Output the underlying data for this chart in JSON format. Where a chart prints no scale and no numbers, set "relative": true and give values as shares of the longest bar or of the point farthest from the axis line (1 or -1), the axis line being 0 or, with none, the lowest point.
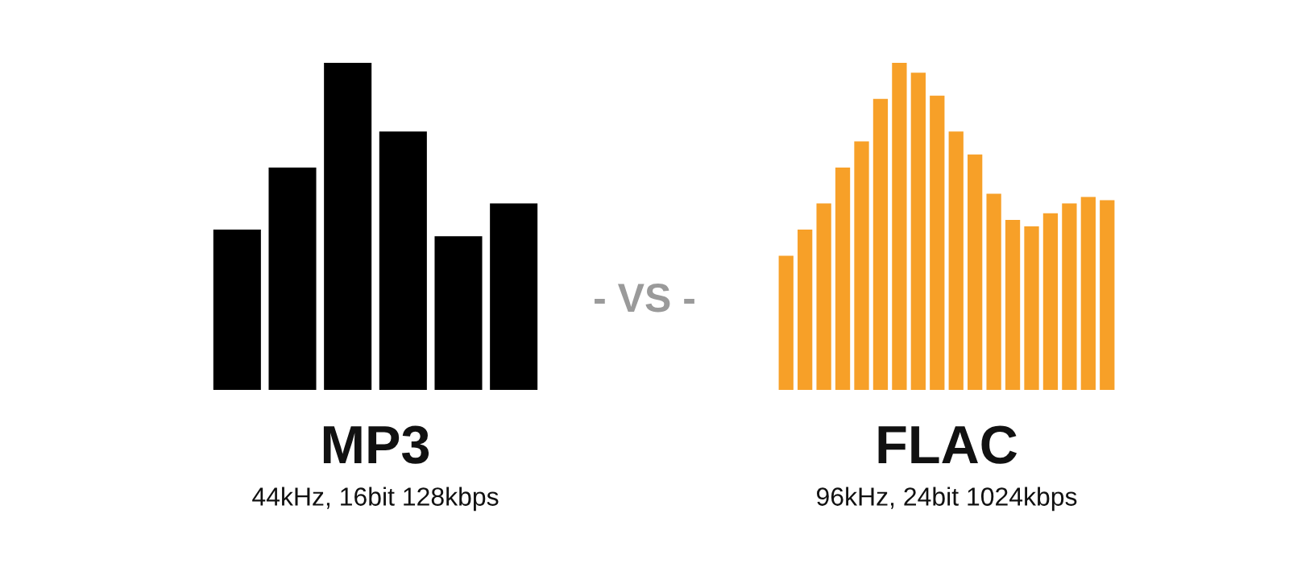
{
  "chart_data": [
    {
      "type": "bar",
      "title": "MP3",
      "subtitle": "44kHz, 16bit 128kbps",
      "relative": true,
      "categories": [
        null,
        null,
        null,
        null,
        null,
        null
      ],
      "values": [
        0.49,
        0.68,
        1.0,
        0.79,
        0.47,
        0.57
      ],
      "color": "#000000",
      "annotations": [
        "- VS -"
      ]
    },
    {
      "type": "bar",
      "title": "FLAC",
      "subtitle": "96kHz, 24bit 1024kbps",
      "relative": true,
      "categories": [
        null,
        null,
        null,
        null,
        null,
        null,
        null,
        null,
        null,
        null,
        null,
        null,
        null,
        null,
        null,
        null,
        null,
        null
      ],
      "values": [
        0.41,
        0.49,
        0.57,
        0.68,
        0.76,
        0.89,
        1.0,
        0.97,
        0.9,
        0.79,
        0.72,
        0.6,
        0.52,
        0.5,
        0.54,
        0.57,
        0.59,
        0.58
      ],
      "color": "#f7a028"
    }
  ]
}
